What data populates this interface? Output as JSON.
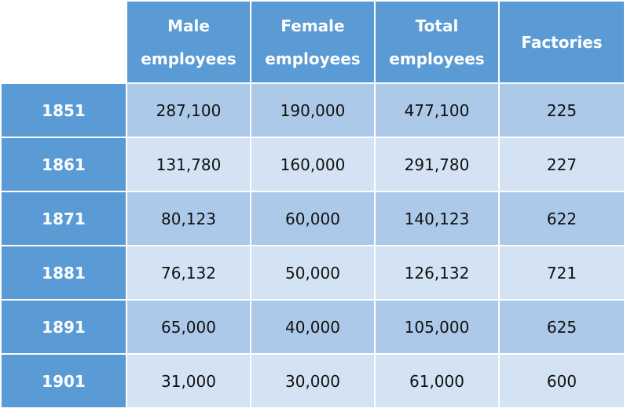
{
  "table": {
    "header": [
      "Male employees",
      "Female employees",
      "Total employees",
      "Factories"
    ],
    "rows": [
      [
        "1851",
        "287,100",
        "190,000",
        "477,100",
        "225"
      ],
      [
        "1861",
        "131,780",
        "160,000",
        "291,780",
        "227"
      ],
      [
        "1871",
        "80,123",
        "60,000",
        "140,123",
        "622"
      ],
      [
        "1881",
        "76,132",
        "50,000",
        "126,132",
        "721"
      ],
      [
        "1891",
        "65,000",
        "40,000",
        "105,000",
        "625"
      ],
      [
        "1901",
        "31,000",
        "30,000",
        "61,000",
        "600"
      ]
    ]
  }
}
